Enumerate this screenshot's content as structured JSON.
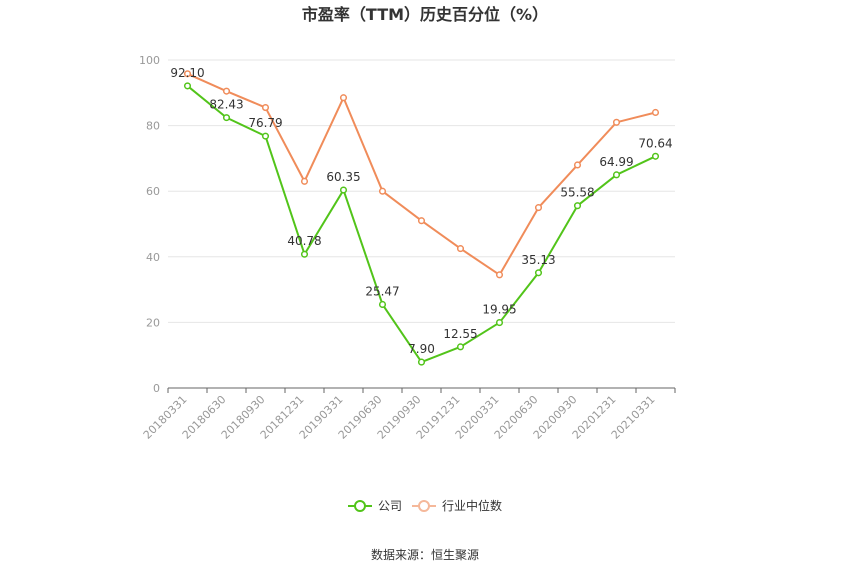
{
  "chart_data": {
    "type": "line",
    "title": "市盈率（TTM）历史百分位（%）",
    "x": [
      "20180331",
      "20180630",
      "20180930",
      "20181231",
      "20190331",
      "20190630",
      "20190930",
      "20191231",
      "20200331",
      "20200630",
      "20200930",
      "20201231",
      "20210331"
    ],
    "ylim": [
      0,
      100
    ],
    "yticks": [
      0,
      20,
      40,
      60,
      80,
      100
    ],
    "grid": true,
    "legend_position": "bottom",
    "series": [
      {
        "name": "公司",
        "color": "#52c41a",
        "values": [
          92.1,
          82.43,
          76.79,
          40.78,
          60.35,
          25.47,
          7.9,
          12.55,
          19.95,
          35.13,
          55.58,
          64.99,
          70.64
        ],
        "labels": [
          "92.10",
          "82.43",
          "76.79",
          "40.78",
          "60.35",
          "25.47",
          "7.90",
          "12.55",
          "19.95",
          "35.13",
          "55.58",
          "64.99",
          "70.64"
        ]
      },
      {
        "name": "行业中位数",
        "color": "#f08c5a",
        "values": [
          95.8,
          90.5,
          85.5,
          63.0,
          88.5,
          60.0,
          51.0,
          42.5,
          34.5,
          55.0,
          68.0,
          81.0,
          84.0
        ]
      }
    ]
  },
  "source": "数据来源：恒生聚源"
}
